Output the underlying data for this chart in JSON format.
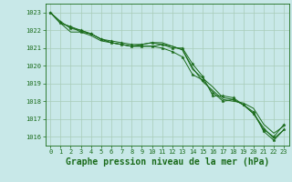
{
  "title": "Graphe pression niveau de la mer (hPa)",
  "bg_color": "#c8e8e8",
  "grid_color": "#a8ccb8",
  "line_color": "#1a6b1a",
  "marker_color": "#1a6b1a",
  "xlim": [
    -0.5,
    23.5
  ],
  "ylim": [
    1015.5,
    1023.5
  ],
  "yticks": [
    1016,
    1017,
    1018,
    1019,
    1020,
    1021,
    1022,
    1023
  ],
  "xticks": [
    0,
    1,
    2,
    3,
    4,
    5,
    6,
    7,
    8,
    9,
    10,
    11,
    12,
    13,
    14,
    15,
    16,
    17,
    18,
    19,
    20,
    21,
    22,
    23
  ],
  "series": [
    [
      1023.0,
      1022.4,
      1022.2,
      1021.9,
      1021.8,
      1021.5,
      1021.3,
      1021.2,
      1021.1,
      1021.1,
      1021.1,
      1021.0,
      1020.8,
      1020.5,
      1019.5,
      1019.2,
      1018.5,
      1018.0,
      1018.1,
      1017.8,
      1017.4,
      1016.3,
      1015.8,
      1016.4
    ],
    [
      1023.0,
      1022.4,
      1022.2,
      1022.0,
      1021.8,
      1021.5,
      1021.3,
      1021.2,
      1021.1,
      1021.1,
      1021.1,
      1021.2,
      1021.1,
      1020.9,
      1019.9,
      1019.1,
      1018.6,
      1018.1,
      1018.0,
      1017.9,
      1017.6,
      1016.7,
      1016.2,
      1016.6
    ],
    [
      1023.0,
      1022.4,
      1021.9,
      1021.9,
      1021.7,
      1021.4,
      1021.3,
      1021.2,
      1021.1,
      1021.2,
      1021.3,
      1021.3,
      1021.1,
      1020.9,
      1019.8,
      1019.3,
      1018.8,
      1018.2,
      1018.1,
      1017.8,
      1017.3,
      1016.5,
      1015.9,
      1016.4
    ],
    [
      1023.0,
      1022.5,
      1022.1,
      1022.0,
      1021.8,
      1021.5,
      1021.4,
      1021.3,
      1021.2,
      1021.2,
      1021.3,
      1021.2,
      1021.0,
      1021.0,
      1020.1,
      1019.4,
      1018.3,
      1018.3,
      1018.2,
      1017.8,
      1017.3,
      1016.4,
      1016.0,
      1016.7
    ]
  ],
  "marker_series": [
    0,
    3
  ],
  "marker_size": 2.5,
  "font_family": "monospace",
  "title_fontsize": 7.0,
  "tick_fontsize": 5.0
}
